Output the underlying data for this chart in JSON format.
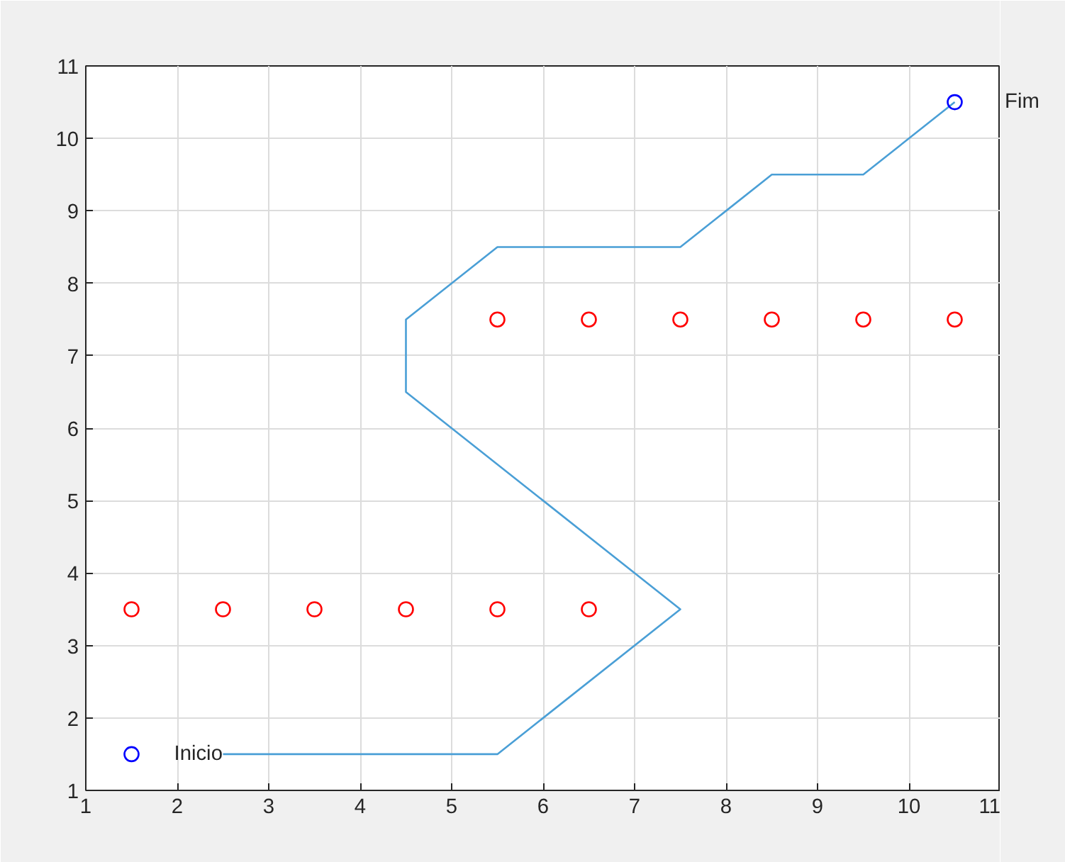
{
  "chart_data": {
    "type": "line",
    "xlim": [
      1,
      11
    ],
    "ylim": [
      1,
      11
    ],
    "xticks": [
      1,
      2,
      3,
      4,
      5,
      6,
      7,
      8,
      9,
      10,
      11
    ],
    "yticks": [
      1,
      2,
      3,
      4,
      5,
      6,
      7,
      8,
      9,
      10,
      11
    ],
    "grid": true,
    "series": [
      {
        "color": "#4a9fd6",
        "marker": "none",
        "x": [
          2.5,
          5.5,
          7.5,
          4.5,
          4.5,
          5.5,
          7.5,
          8.5,
          9.5,
          10.5
        ],
        "values": [
          1.5,
          1.5,
          3.5,
          6.5,
          7.5,
          8.5,
          8.5,
          9.5,
          9.5,
          10.5
        ]
      },
      {
        "type": "scatter",
        "color": "#ff0000",
        "marker": "circle",
        "x": [
          1.5,
          2.5,
          3.5,
          4.5,
          5.5,
          6.5,
          5.5,
          6.5,
          7.5,
          8.5,
          9.5,
          10.5
        ],
        "values": [
          3.5,
          3.5,
          3.5,
          3.5,
          3.5,
          3.5,
          7.5,
          7.5,
          7.5,
          7.5,
          7.5,
          7.5
        ]
      },
      {
        "type": "scatter",
        "color": "#0000ff",
        "marker": "circle",
        "x": [
          1.5,
          10.5
        ],
        "values": [
          1.5,
          10.5
        ]
      }
    ],
    "annotations": [
      {
        "text": "Inicio",
        "x": 1.5,
        "y": 1.5
      },
      {
        "text": "Fim",
        "x": 10.5,
        "y": 10.5
      }
    ]
  }
}
